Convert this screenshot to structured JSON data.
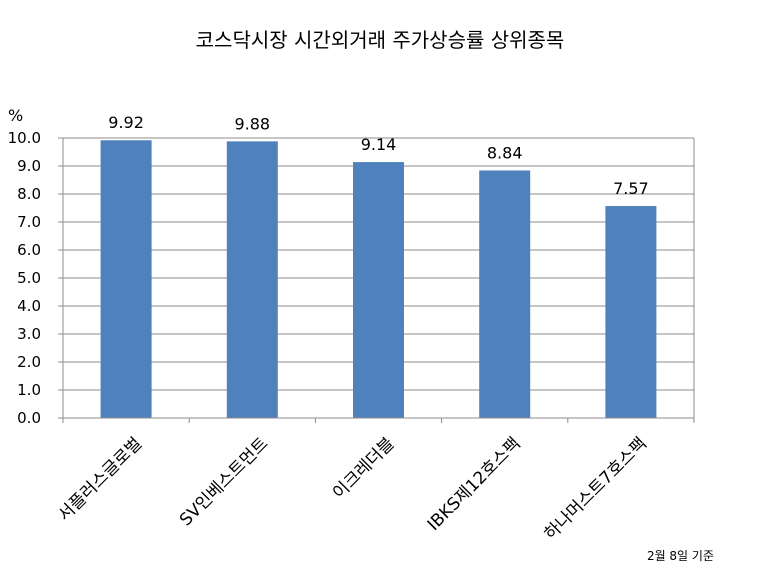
{
  "chart_data": {
    "type": "bar",
    "title": "코스닥시장 시간외거래  주가상승률 상위종목",
    "ylabel": "%",
    "xlabel": "",
    "categories": [
      "서플러스글로벌",
      "SV인베스트먼트",
      "이크레더블",
      "IBKS제12호스팩",
      "하나머스트7호스팩"
    ],
    "values": [
      9.92,
      9.88,
      9.14,
      8.84,
      7.57
    ],
    "value_labels": [
      "9.92",
      "9.88",
      "9.14",
      "8.84",
      "7.57"
    ],
    "ylim": [
      0,
      10
    ],
    "yticks": [
      "0.0",
      "1.0",
      "2.0",
      "3.0",
      "4.0",
      "5.0",
      "6.0",
      "7.0",
      "8.0",
      "9.0",
      "10.0"
    ],
    "grid": true,
    "legend": "none",
    "bar_color": "#4F81BD",
    "note": "2월  8일 기준"
  }
}
